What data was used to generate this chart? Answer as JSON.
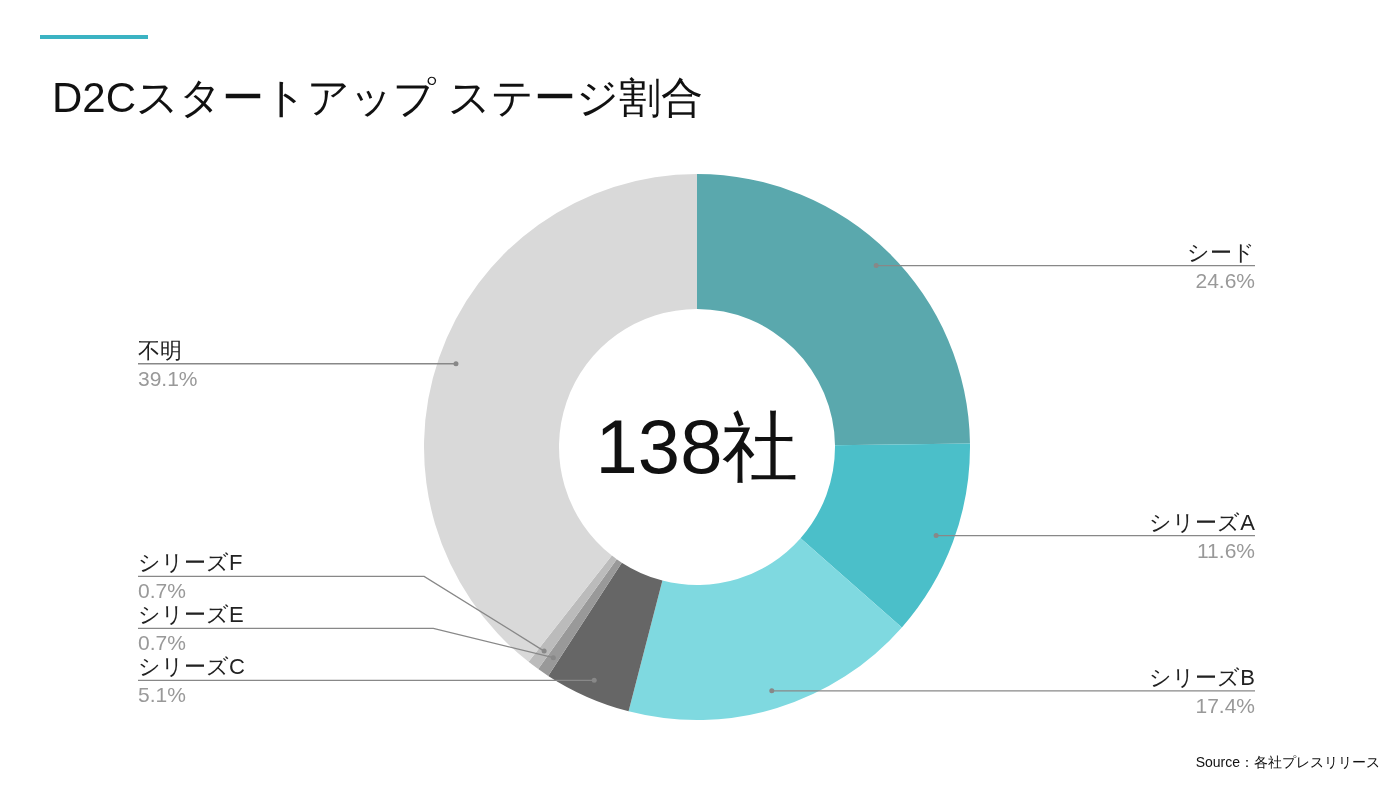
{
  "chart_data": {
    "type": "donut",
    "title": "D2Cスタートアップ ステージ割合",
    "categories": [
      "シード",
      "シリーズA",
      "シリーズB",
      "シリーズC",
      "シリーズE",
      "シリーズF",
      "不明"
    ],
    "values": [
      24.6,
      11.6,
      17.4,
      5.1,
      0.7,
      0.7,
      39.1
    ],
    "colors": [
      "#5aa8ad",
      "#4bbfc9",
      "#7fd9e0",
      "#666666",
      "#999999",
      "#bbbbbb",
      "#d9d9d9"
    ],
    "value_labels": [
      "24.6%",
      "11.6%",
      "17.4%",
      "5.1%",
      "0.7%",
      "0.7%",
      "39.1%"
    ],
    "annotations": [
      "138社",
      "Source：各社プレスリリース"
    ]
  }
}
